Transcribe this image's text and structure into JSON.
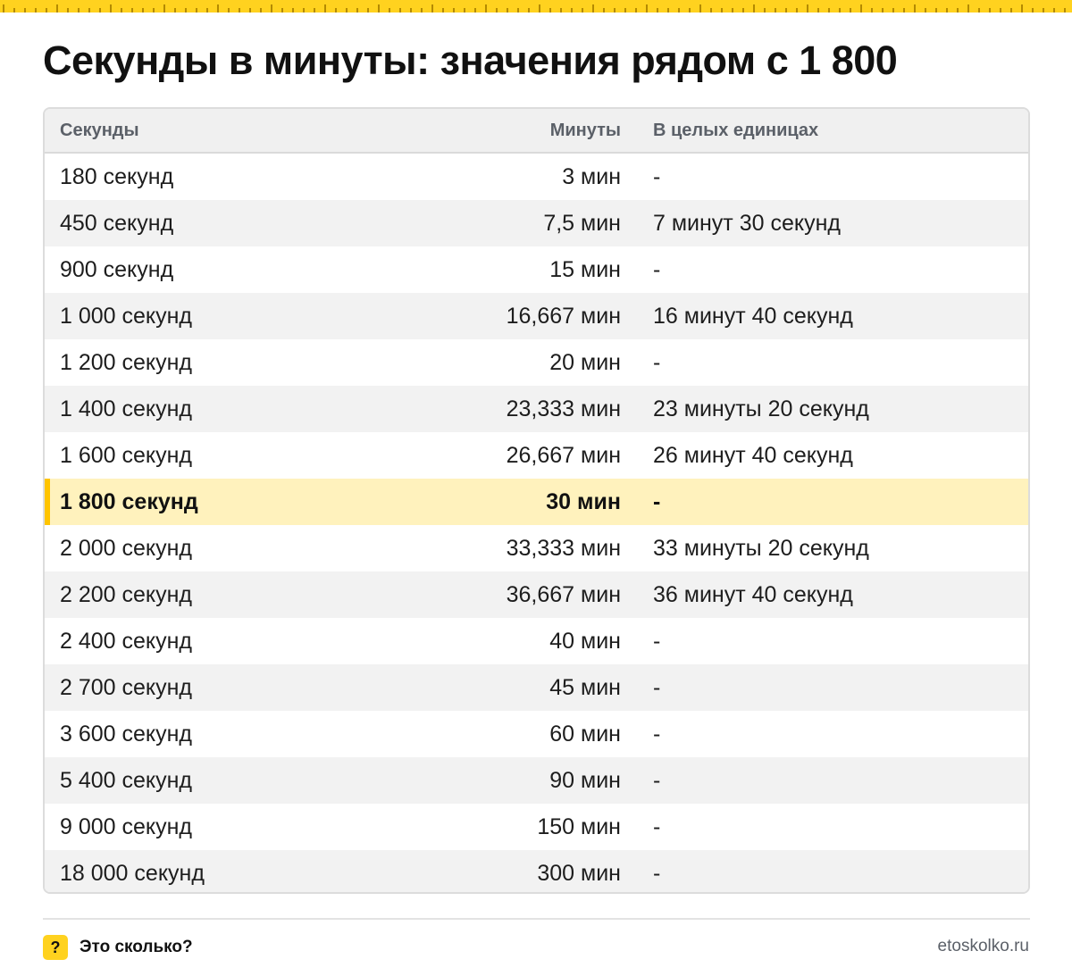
{
  "header": {
    "title": "Секунды в минуты: значения рядом с 1 800"
  },
  "table": {
    "columns": [
      "Секунды",
      "Минуты",
      "В целых единицах"
    ],
    "rows": [
      {
        "seconds": "180 секунд",
        "minutes": "3 мин",
        "whole": "-"
      },
      {
        "seconds": "450 секунд",
        "minutes": "7,5 мин",
        "whole": "7 минут 30 секунд"
      },
      {
        "seconds": "900 секунд",
        "minutes": "15 мин",
        "whole": "-"
      },
      {
        "seconds": "1 000 секунд",
        "minutes": "16,667 мин",
        "whole": "16 минут 40 секунд"
      },
      {
        "seconds": "1 200 секунд",
        "minutes": "20 мин",
        "whole": "-"
      },
      {
        "seconds": "1 400 секунд",
        "minutes": "23,333 мин",
        "whole": "23 минуты 20 секунд"
      },
      {
        "seconds": "1 600 секунд",
        "minutes": "26,667 мин",
        "whole": "26 минут 40 секунд"
      },
      {
        "seconds": "1 800 секунд",
        "minutes": "30 мин",
        "whole": "-",
        "highlight": true
      },
      {
        "seconds": "2 000 секунд",
        "minutes": "33,333 мин",
        "whole": "33 минуты 20 секунд"
      },
      {
        "seconds": "2 200 секунд",
        "minutes": "36,667 мин",
        "whole": "36 минут 40 секунд"
      },
      {
        "seconds": "2 400 секунд",
        "minutes": "40 мин",
        "whole": "-"
      },
      {
        "seconds": "2 700 секунд",
        "minutes": "45 мин",
        "whole": "-"
      },
      {
        "seconds": "3 600 секунд",
        "minutes": "60 мин",
        "whole": "-"
      },
      {
        "seconds": "5 400 секунд",
        "minutes": "90 мин",
        "whole": "-"
      },
      {
        "seconds": "9 000 секунд",
        "minutes": "150 мин",
        "whole": "-"
      },
      {
        "seconds": "18 000 секунд",
        "minutes": "300 мин",
        "whole": "-"
      }
    ]
  },
  "footer": {
    "brand_icon": "?",
    "brand_name": "Это сколько?",
    "site": "etoskolko.ru"
  },
  "colors": {
    "accent_yellow": "#ffd21f",
    "highlight_row": "#fff2bd",
    "highlight_bar": "#ffc400"
  },
  "icons": {
    "brand": "question-mark-icon",
    "top_strip": "ruler-strip"
  }
}
